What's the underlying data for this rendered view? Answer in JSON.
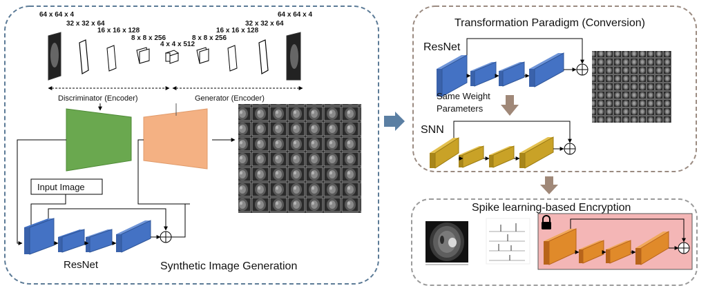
{
  "left_panel": {
    "title": "Synthetic Image Generation",
    "encoder_dims": [
      "64 x 64 x 4",
      "32 x 32 x 64",
      "16 x 16 x 128",
      "8 x 8 x 256",
      "4 x 4 x 512"
    ],
    "decoder_dims": [
      "8 x 8 x 256",
      "16 x 16 x 128",
      "32 x 32 x 64",
      "64 x 64 x 4"
    ],
    "discriminator_label": "Discriminator (Encoder)",
    "generator_label": "Generator (Encoder)",
    "input_label": "Input Image",
    "resnet_label": "ResNet"
  },
  "top_right_panel": {
    "title": "Transformation Paradigm (Conversion)",
    "resnet_label": "ResNet",
    "shared_label_line1": "Same Weight",
    "shared_label_line2": "Parameters",
    "snn_label": "SNN"
  },
  "bottom_right_panel": {
    "title": "Spike learning-based Encryption"
  },
  "colors": {
    "panel_left_border": "#5b7a96",
    "panel_right_border": "#9a8a80",
    "panel_bottom_border": "#9a9a9a",
    "resnet_blue": "#4472c4",
    "snn_gold": "#c9a227",
    "encrypt_orange": "#e08a2a",
    "encrypt_bg": "#f4b6b6",
    "discriminator_green": "#6aa84f",
    "generator_orange": "#f4b183",
    "transfer_arrow": "#5b7fa3",
    "weight_arrow": "#a08878"
  },
  "icons": [
    "plus-circle-icon",
    "lock-icon",
    "arrow-right-icon",
    "arrow-down-icon"
  ]
}
